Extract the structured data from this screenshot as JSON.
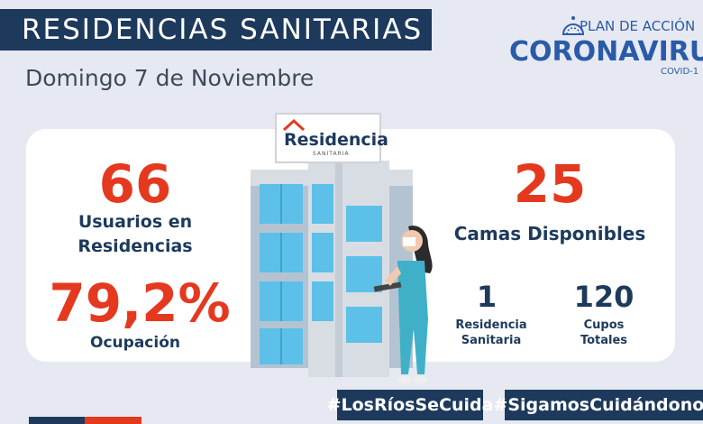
{
  "header": {
    "title": "RESIDENCIAS SANITARIAS",
    "date": "Domingo 7 de Noviembre"
  },
  "logo": {
    "plan": "PLAN DE ACCIÓN",
    "corona": "CORONAVIRUS",
    "covid": "COVID-1"
  },
  "sign": {
    "brand": "Residencia",
    "sub": "SANITARIA"
  },
  "stats": {
    "usuarios_value": "66",
    "usuarios_label_1": "Usuarios en",
    "usuarios_label_2": "Residencias",
    "ocupacion_value": "79,2%",
    "ocupacion_label": "Ocupación",
    "camas_value": "25",
    "camas_label": "Camas Disponibles",
    "residencia_value": "1",
    "residencia_label_1": "Residencia",
    "residencia_label_2": "Sanitaria",
    "cupos_value": "120",
    "cupos_label_1": "Cupos",
    "cupos_label_2": "Totales"
  },
  "hashtags": {
    "tag1": "#LosRíosSeCuida",
    "tag2": "#SigamosCuidándonos"
  },
  "colors": {
    "navy": "#1d3a5c",
    "red": "#e5391f",
    "background": "#e7e9f2",
    "brand_blue": "#2a5ba8"
  }
}
